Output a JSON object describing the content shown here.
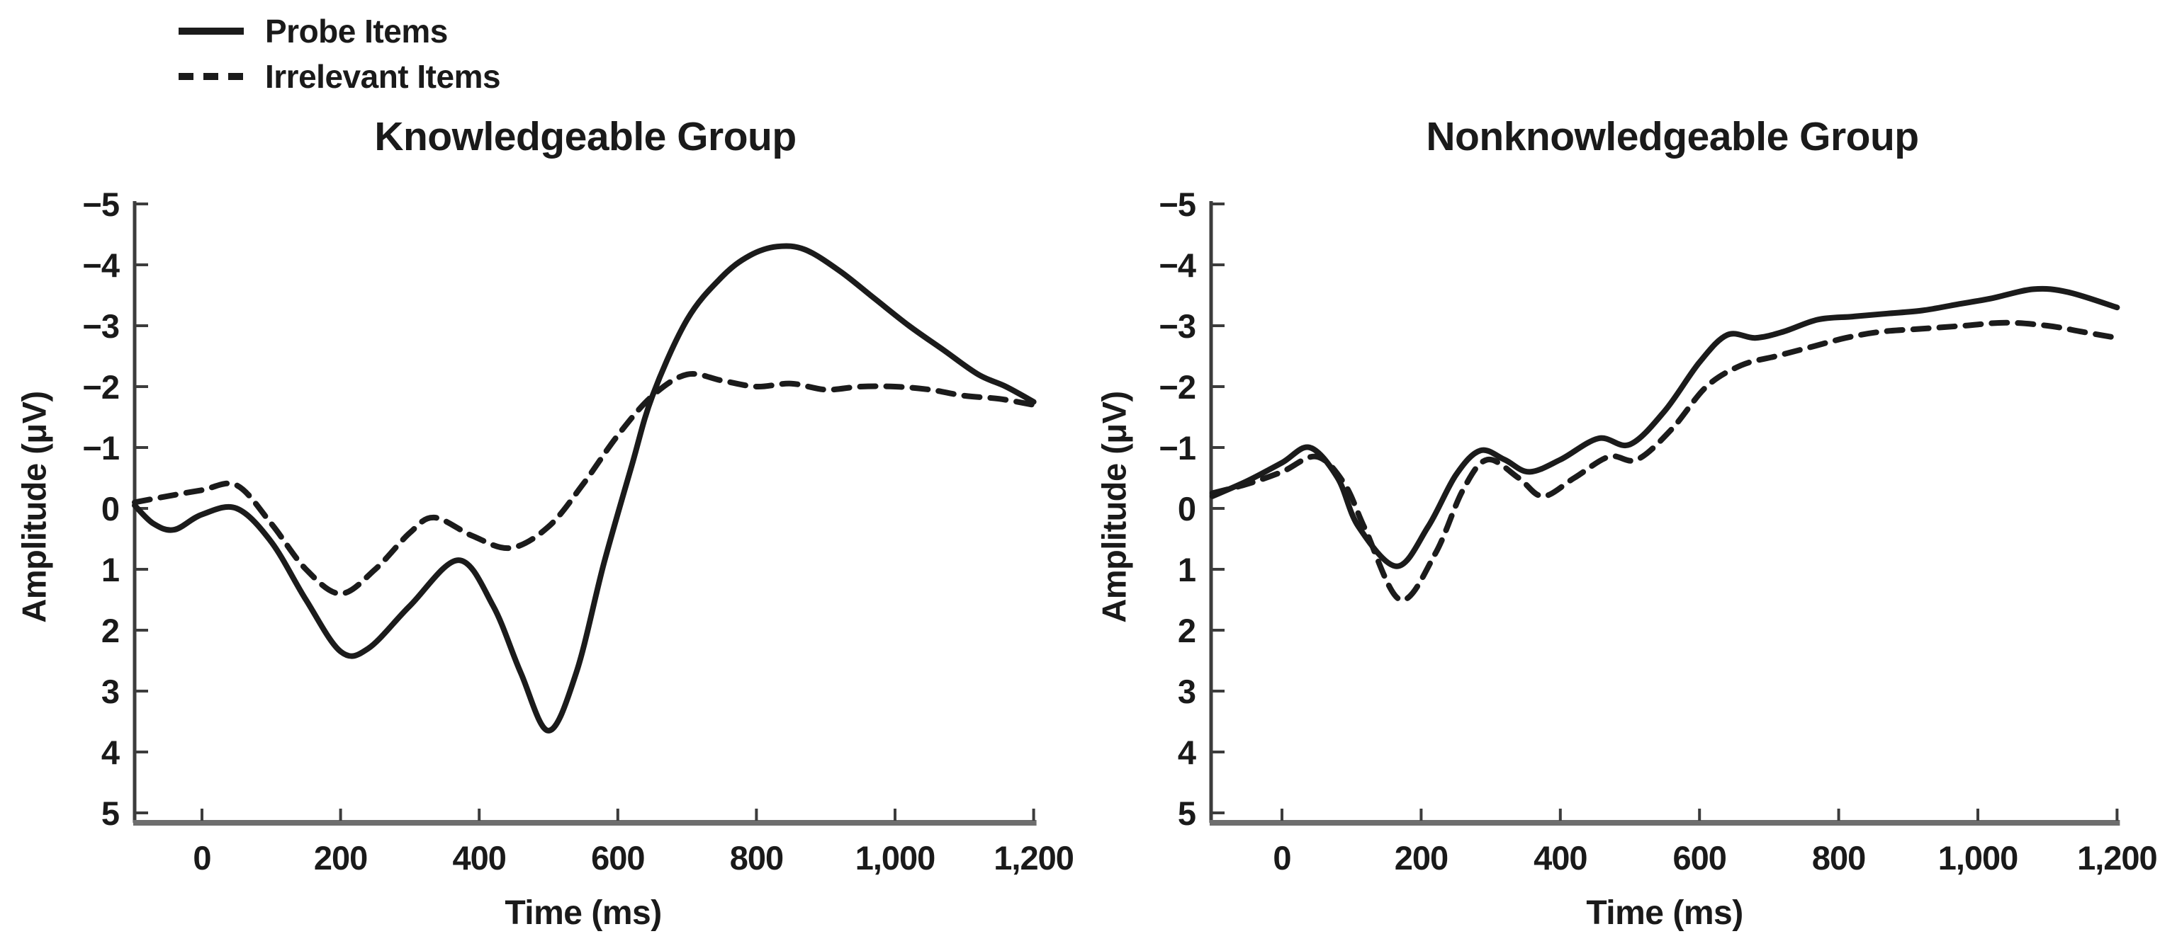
{
  "figure": {
    "background_color": "#ffffff",
    "line_color": "#1b1b1b",
    "text_color": "#1a1a1a",
    "x_axis_color": "#6e6e6e",
    "y_axis_color": "#3c3c3c"
  },
  "legend": {
    "position": "top-left",
    "items": [
      {
        "label": "Probe Items",
        "style": "solid"
      },
      {
        "label": "Irrelevant Items",
        "style": "dashed"
      }
    ]
  },
  "chart_data": [
    {
      "type": "line",
      "title": "Knowledgeable Group",
      "xlabel": "Time (ms)",
      "ylabel": "Amplitude (μV)",
      "xlim": [
        -100,
        1200
      ],
      "ylim": [
        5,
        -5
      ],
      "y_axis_inverted": true,
      "grid": false,
      "x_ticks": [
        {
          "value": 0,
          "label": "0"
        },
        {
          "value": 200,
          "label": "200"
        },
        {
          "value": 400,
          "label": "400"
        },
        {
          "value": 600,
          "label": "600"
        },
        {
          "value": 800,
          "label": "800"
        },
        {
          "value": 1000,
          "label": "1,000"
        },
        {
          "value": 1200,
          "label": "1,200"
        }
      ],
      "y_ticks": [
        {
          "value": -5,
          "label": "−5"
        },
        {
          "value": -4,
          "label": "−4"
        },
        {
          "value": -3,
          "label": "−3"
        },
        {
          "value": -2,
          "label": "−2"
        },
        {
          "value": -1,
          "label": "−1"
        },
        {
          "value": 0,
          "label": "0"
        },
        {
          "value": 1,
          "label": "1"
        },
        {
          "value": 2,
          "label": "2"
        },
        {
          "value": 3,
          "label": "3"
        },
        {
          "value": 4,
          "label": "4"
        },
        {
          "value": 5,
          "label": "5"
        }
      ],
      "series": [
        {
          "name": "Probe Items",
          "style": "solid",
          "points": [
            [
              -100,
              -0.05
            ],
            [
              -70,
              0.25
            ],
            [
              -40,
              0.35
            ],
            [
              0,
              0.1
            ],
            [
              50,
              0.0
            ],
            [
              100,
              0.55
            ],
            [
              150,
              1.5
            ],
            [
              200,
              2.35
            ],
            [
              240,
              2.3
            ],
            [
              300,
              1.6
            ],
            [
              370,
              0.85
            ],
            [
              420,
              1.6
            ],
            [
              460,
              2.7
            ],
            [
              500,
              3.65
            ],
            [
              540,
              2.7
            ],
            [
              580,
              0.9
            ],
            [
              620,
              -0.7
            ],
            [
              650,
              -1.85
            ],
            [
              700,
              -3.1
            ],
            [
              750,
              -3.8
            ],
            [
              790,
              -4.15
            ],
            [
              830,
              -4.3
            ],
            [
              870,
              -4.25
            ],
            [
              920,
              -3.9
            ],
            [
              970,
              -3.45
            ],
            [
              1020,
              -3.0
            ],
            [
              1070,
              -2.6
            ],
            [
              1120,
              -2.2
            ],
            [
              1160,
              -2.0
            ],
            [
              1200,
              -1.75
            ]
          ]
        },
        {
          "name": "Irrelevant Items",
          "style": "dashed",
          "points": [
            [
              -100,
              -0.1
            ],
            [
              -50,
              -0.2
            ],
            [
              0,
              -0.3
            ],
            [
              50,
              -0.38
            ],
            [
              100,
              0.25
            ],
            [
              150,
              1.0
            ],
            [
              200,
              1.4
            ],
            [
              250,
              1.0
            ],
            [
              300,
              0.4
            ],
            [
              335,
              0.15
            ],
            [
              390,
              0.45
            ],
            [
              445,
              0.65
            ],
            [
              500,
              0.3
            ],
            [
              550,
              -0.4
            ],
            [
              600,
              -1.2
            ],
            [
              650,
              -1.85
            ],
            [
              700,
              -2.2
            ],
            [
              750,
              -2.1
            ],
            [
              800,
              -2.0
            ],
            [
              850,
              -2.05
            ],
            [
              900,
              -1.95
            ],
            [
              950,
              -2.0
            ],
            [
              1000,
              -2.0
            ],
            [
              1050,
              -1.95
            ],
            [
              1100,
              -1.85
            ],
            [
              1150,
              -1.8
            ],
            [
              1200,
              -1.7
            ]
          ]
        }
      ]
    },
    {
      "type": "line",
      "title": "Nonknowledgeable Group",
      "xlabel": "Time (ms)",
      "ylabel": "Amplitude (μV)",
      "xlim": [
        -100,
        1200
      ],
      "ylim": [
        5,
        -5
      ],
      "y_axis_inverted": true,
      "grid": false,
      "x_ticks": [
        {
          "value": 0,
          "label": "0"
        },
        {
          "value": 200,
          "label": "200"
        },
        {
          "value": 400,
          "label": "400"
        },
        {
          "value": 600,
          "label": "600"
        },
        {
          "value": 800,
          "label": "800"
        },
        {
          "value": 1000,
          "label": "1,000"
        },
        {
          "value": 1200,
          "label": "1,200"
        }
      ],
      "y_ticks": [
        {
          "value": -5,
          "label": "−5"
        },
        {
          "value": -4,
          "label": "−4"
        },
        {
          "value": -3,
          "label": "−3"
        },
        {
          "value": -2,
          "label": "−2"
        },
        {
          "value": -1,
          "label": "−1"
        },
        {
          "value": 0,
          "label": "0"
        },
        {
          "value": 1,
          "label": "1"
        },
        {
          "value": 2,
          "label": "2"
        },
        {
          "value": 3,
          "label": "3"
        },
        {
          "value": 4,
          "label": "4"
        },
        {
          "value": 5,
          "label": "5"
        }
      ],
      "series": [
        {
          "name": "Probe Items",
          "style": "solid",
          "points": [
            [
              -100,
              -0.2
            ],
            [
              -50,
              -0.45
            ],
            [
              0,
              -0.75
            ],
            [
              40,
              -1.0
            ],
            [
              80,
              -0.5
            ],
            [
              110,
              0.3
            ],
            [
              165,
              0.95
            ],
            [
              210,
              0.3
            ],
            [
              250,
              -0.55
            ],
            [
              285,
              -0.95
            ],
            [
              320,
              -0.8
            ],
            [
              355,
              -0.6
            ],
            [
              400,
              -0.8
            ],
            [
              455,
              -1.15
            ],
            [
              500,
              -1.05
            ],
            [
              550,
              -1.6
            ],
            [
              600,
              -2.4
            ],
            [
              640,
              -2.85
            ],
            [
              680,
              -2.8
            ],
            [
              720,
              -2.9
            ],
            [
              770,
              -3.1
            ],
            [
              820,
              -3.15
            ],
            [
              870,
              -3.2
            ],
            [
              920,
              -3.25
            ],
            [
              970,
              -3.35
            ],
            [
              1020,
              -3.45
            ],
            [
              1080,
              -3.6
            ],
            [
              1130,
              -3.55
            ],
            [
              1200,
              -3.3
            ]
          ]
        },
        {
          "name": "Irrelevant Items",
          "style": "dashed",
          "points": [
            [
              -100,
              -0.25
            ],
            [
              -50,
              -0.4
            ],
            [
              0,
              -0.6
            ],
            [
              50,
              -0.85
            ],
            [
              90,
              -0.4
            ],
            [
              120,
              0.35
            ],
            [
              170,
              1.5
            ],
            [
              220,
              0.75
            ],
            [
              260,
              -0.3
            ],
            [
              295,
              -0.8
            ],
            [
              340,
              -0.5
            ],
            [
              375,
              -0.2
            ],
            [
              420,
              -0.5
            ],
            [
              470,
              -0.85
            ],
            [
              510,
              -0.8
            ],
            [
              560,
              -1.3
            ],
            [
              610,
              -2.0
            ],
            [
              660,
              -2.35
            ],
            [
              710,
              -2.5
            ],
            [
              760,
              -2.65
            ],
            [
              810,
              -2.8
            ],
            [
              860,
              -2.9
            ],
            [
              920,
              -2.95
            ],
            [
              980,
              -3.0
            ],
            [
              1040,
              -3.05
            ],
            [
              1100,
              -3.0
            ],
            [
              1150,
              -2.9
            ],
            [
              1200,
              -2.8
            ]
          ]
        }
      ]
    }
  ]
}
